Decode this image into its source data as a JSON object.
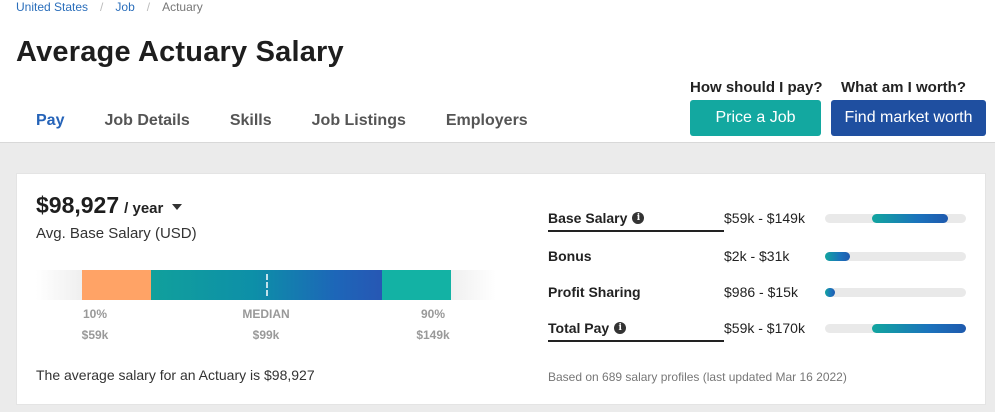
{
  "breadcrumb": {
    "items": [
      "United States",
      "Job"
    ],
    "current": "Actuary",
    "sep": "/"
  },
  "page": {
    "title": "Average Actuary Salary"
  },
  "tabs": [
    "Pay",
    "Job Details",
    "Skills",
    "Job Listings",
    "Employers"
  ],
  "cta": {
    "question1": "How should I pay?",
    "button1": "Price a Job",
    "question2": "What am I worth?",
    "button2": "Find market worth"
  },
  "salary": {
    "amount": "$98,927",
    "period": "/ year",
    "label": "Avg. Base Salary (USD)"
  },
  "range": {
    "p10_label": "10%",
    "p10_value": "$59k",
    "median_label": "MEDIAN",
    "median_value": "$99k",
    "p90_label": "90%",
    "p90_value": "$149k"
  },
  "statement": "The average salary for an Actuary is $98,927",
  "comp": [
    {
      "label": "Base Salary",
      "range": "$59k - $149k",
      "info": true,
      "fill": [
        0.33,
        0.87
      ]
    },
    {
      "label": "Bonus",
      "range": "$2k - $31k",
      "info": false,
      "fill": [
        0.0,
        0.18
      ]
    },
    {
      "label": "Profit Sharing",
      "range": "$986 - $15k",
      "info": false,
      "fill": [
        0.0,
        0.07
      ]
    },
    {
      "label": "Total Pay",
      "range": "$59k - $170k",
      "info": true,
      "fill": [
        0.33,
        1.0
      ]
    }
  ],
  "footnote": "Based on 689 salary profiles (last updated Mar 16 2022)",
  "colors": {
    "primary": "#2563b8",
    "teal": "#13a8a0",
    "navy": "#1f4fa0",
    "orange": "#ffa366"
  }
}
